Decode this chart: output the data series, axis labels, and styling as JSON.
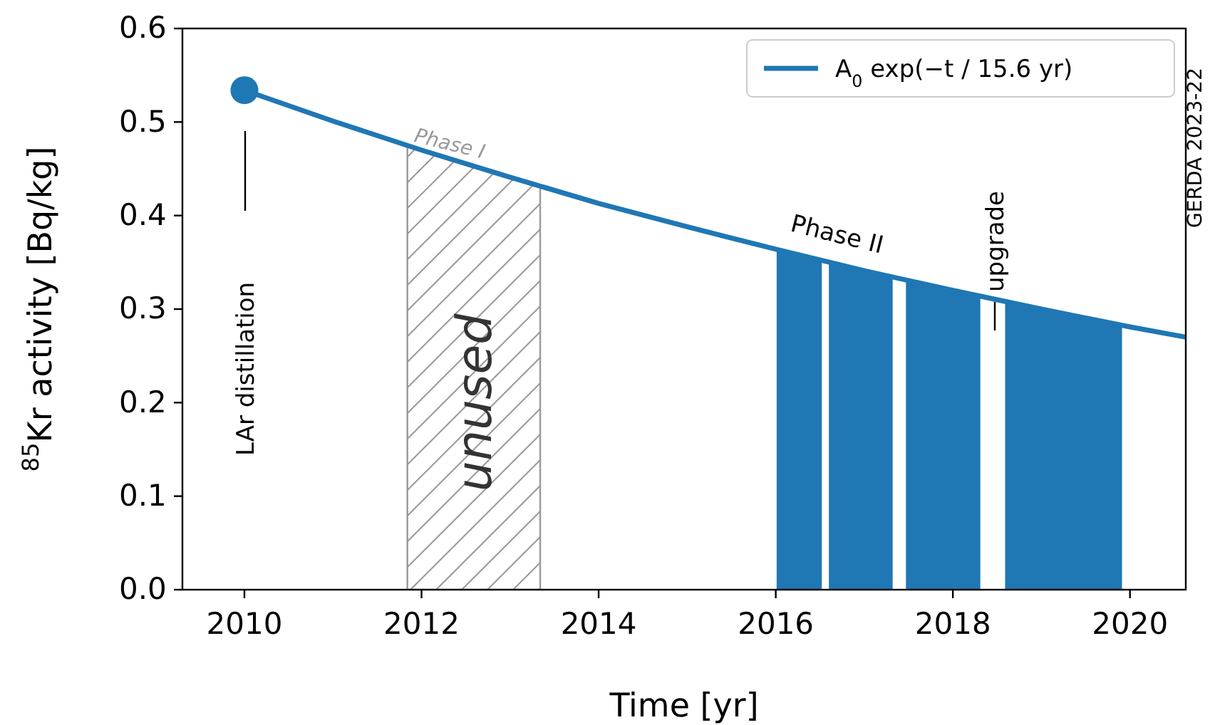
{
  "chart_data": {
    "type": "line",
    "xlabel": "Time [yr]",
    "ylabel": "$^{85}$Kr activity [Bq/kg]",
    "xlim": [
      2009.3,
      2020.63
    ],
    "xticks": [
      2010,
      2012,
      2014,
      2016,
      2018,
      2020
    ],
    "ylim": [
      0,
      0.6
    ],
    "yticks": [
      {
        "value": 0,
        "label": "0.0"
      },
      0.1,
      0.2,
      0.3,
      0.4,
      0.5,
      0.6
    ],
    "series": [
      {
        "name": "A$_{0}$ exp(−t / 15.6 yr)",
        "color": "#1f77b4",
        "marker": "none",
        "x": [
          2010,
          2011,
          2012,
          2013,
          2014,
          2015,
          2016,
          2017,
          2018,
          2019,
          2020,
          2020.63
        ],
        "values": [
          0.534,
          0.501,
          0.47,
          0.441,
          0.413,
          0.388,
          0.364,
          0.341,
          0.32,
          0.3,
          0.281,
          0.27
        ]
      },
      {
        "type": "scatter",
        "color": "#1f77b4",
        "marker": "circle",
        "x": [
          2010
        ],
        "values": [
          0.534
        ]
      }
    ],
    "bands": [
      {
        "axis": "x",
        "from": 2011.84,
        "to": 2013.34,
        "label": "unused",
        "color": "#999999"
      },
      {
        "axis": "x",
        "from": 2016.01,
        "to": 2016.52,
        "color": "#1f77b4"
      },
      {
        "axis": "x",
        "from": 2016.6,
        "to": 2017.32,
        "color": "#1f77b4"
      },
      {
        "axis": "x",
        "from": 2017.47,
        "to": 2018.31,
        "color": "#1f77b4"
      },
      {
        "axis": "x",
        "from": 2018.59,
        "to": 2019.91,
        "color": "#1f77b4"
      }
    ],
    "annotations": [
      "LAr distillation",
      {
        "text": "Phase I",
        "x": 2012.3,
        "y": 0.47
      },
      "Phase II",
      "upgrade",
      "GERDA 2023-22"
    ],
    "legend": "top right",
    "grid": false
  }
}
